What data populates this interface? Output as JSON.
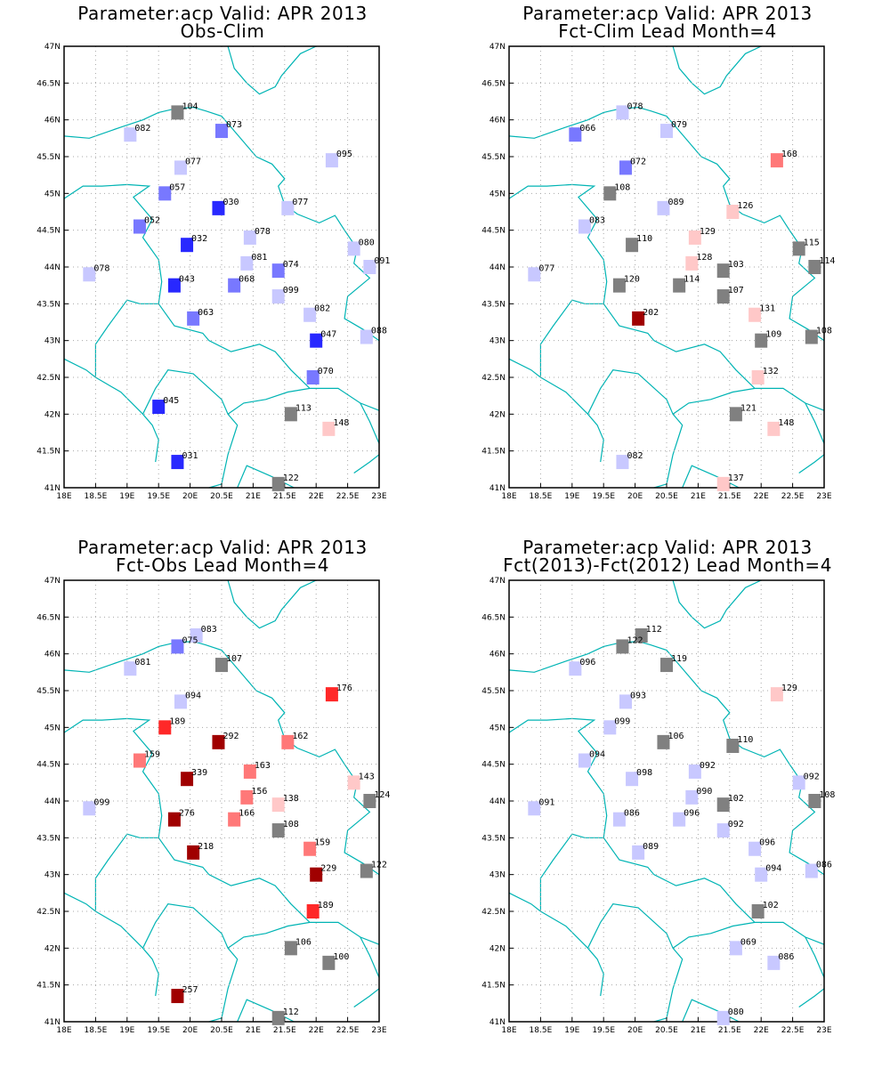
{
  "colors": {
    "grey": "#808080",
    "blue_light": "#c8c8ff",
    "blue_mid": "#7878ff",
    "blue_dark": "#2828ff",
    "red_light": "#ffc8c8",
    "red_mid": "#ff7878",
    "red_strong": "#ff2828",
    "red_dark": "#a00000",
    "border": "#00b4b4"
  },
  "panels": [
    {
      "title1": "Parameter:acp Valid: APR 2013",
      "title2": "Obs-Clim",
      "stations": [
        {
          "lon": 19.8,
          "lat": 46.1,
          "label": "104",
          "color": "grey"
        },
        {
          "lon": 19.05,
          "lat": 45.8,
          "label": "082",
          "color": "blue_light"
        },
        {
          "lon": 20.5,
          "lat": 45.85,
          "label": "073",
          "color": "blue_mid"
        },
        {
          "lon": 19.85,
          "lat": 45.35,
          "label": "077",
          "color": "blue_light"
        },
        {
          "lon": 22.25,
          "lat": 45.45,
          "label": "095",
          "color": "blue_light"
        },
        {
          "lon": 19.6,
          "lat": 45.0,
          "label": "057",
          "color": "blue_mid"
        },
        {
          "lon": 20.45,
          "lat": 44.8,
          "label": "030",
          "color": "blue_dark"
        },
        {
          "lon": 21.55,
          "lat": 44.8,
          "label": "077",
          "color": "blue_light"
        },
        {
          "lon": 19.2,
          "lat": 44.55,
          "label": "052",
          "color": "blue_mid"
        },
        {
          "lon": 19.95,
          "lat": 44.3,
          "label": "032",
          "color": "blue_dark"
        },
        {
          "lon": 20.95,
          "lat": 44.4,
          "label": "078",
          "color": "blue_light"
        },
        {
          "lon": 22.6,
          "lat": 44.25,
          "label": "080",
          "color": "blue_light"
        },
        {
          "lon": 20.9,
          "lat": 44.05,
          "label": "081",
          "color": "blue_light"
        },
        {
          "lon": 21.4,
          "lat": 43.95,
          "label": "074",
          "color": "blue_mid"
        },
        {
          "lon": 22.85,
          "lat": 44.0,
          "label": "091",
          "color": "blue_light"
        },
        {
          "lon": 18.4,
          "lat": 43.9,
          "label": "078",
          "color": "blue_light"
        },
        {
          "lon": 19.75,
          "lat": 43.75,
          "label": "043",
          "color": "blue_dark"
        },
        {
          "lon": 20.7,
          "lat": 43.75,
          "label": "068",
          "color": "blue_mid"
        },
        {
          "lon": 21.4,
          "lat": 43.6,
          "label": "099",
          "color": "blue_light"
        },
        {
          "lon": 21.9,
          "lat": 43.35,
          "label": "082",
          "color": "blue_light"
        },
        {
          "lon": 20.05,
          "lat": 43.3,
          "label": "063",
          "color": "blue_mid"
        },
        {
          "lon": 22.0,
          "lat": 43.0,
          "label": "047",
          "color": "blue_dark"
        },
        {
          "lon": 22.8,
          "lat": 43.05,
          "label": "088",
          "color": "blue_light"
        },
        {
          "lon": 21.95,
          "lat": 42.5,
          "label": "070",
          "color": "blue_mid"
        },
        {
          "lon": 19.5,
          "lat": 42.1,
          "label": "045",
          "color": "blue_dark"
        },
        {
          "lon": 21.6,
          "lat": 42.0,
          "label": "113",
          "color": "grey"
        },
        {
          "lon": 22.2,
          "lat": 41.8,
          "label": "148",
          "color": "red_light"
        },
        {
          "lon": 19.8,
          "lat": 41.35,
          "label": "031",
          "color": "blue_dark"
        },
        {
          "lon": 21.4,
          "lat": 41.05,
          "label": "122",
          "color": "grey"
        }
      ]
    },
    {
      "title1": "Parameter:acp Valid: APR 2013",
      "title2": "Fct-Clim Lead Month=4",
      "stations": [
        {
          "lon": 19.8,
          "lat": 46.1,
          "label": "078",
          "color": "blue_light"
        },
        {
          "lon": 19.05,
          "lat": 45.8,
          "label": "066",
          "color": "blue_mid"
        },
        {
          "lon": 20.5,
          "lat": 45.85,
          "label": "079",
          "color": "blue_light"
        },
        {
          "lon": 19.85,
          "lat": 45.35,
          "label": "072",
          "color": "blue_mid"
        },
        {
          "lon": 22.25,
          "lat": 45.45,
          "label": "168",
          "color": "red_mid"
        },
        {
          "lon": 19.6,
          "lat": 45.0,
          "label": "108",
          "color": "grey"
        },
        {
          "lon": 20.45,
          "lat": 44.8,
          "label": "089",
          "color": "blue_light"
        },
        {
          "lon": 21.55,
          "lat": 44.75,
          "label": "126",
          "color": "red_light"
        },
        {
          "lon": 19.2,
          "lat": 44.55,
          "label": "083",
          "color": "blue_light"
        },
        {
          "lon": 19.95,
          "lat": 44.3,
          "label": "110",
          "color": "grey"
        },
        {
          "lon": 20.95,
          "lat": 44.4,
          "label": "129",
          "color": "red_light"
        },
        {
          "lon": 22.6,
          "lat": 44.25,
          "label": "115",
          "color": "grey"
        },
        {
          "lon": 20.9,
          "lat": 44.05,
          "label": "128",
          "color": "red_light"
        },
        {
          "lon": 21.4,
          "lat": 43.95,
          "label": "103",
          "color": "grey"
        },
        {
          "lon": 22.85,
          "lat": 44.0,
          "label": "114",
          "color": "grey"
        },
        {
          "lon": 18.4,
          "lat": 43.9,
          "label": "077",
          "color": "blue_light"
        },
        {
          "lon": 19.75,
          "lat": 43.75,
          "label": "120",
          "color": "grey"
        },
        {
          "lon": 20.7,
          "lat": 43.75,
          "label": "114",
          "color": "grey"
        },
        {
          "lon": 21.4,
          "lat": 43.6,
          "label": "107",
          "color": "grey"
        },
        {
          "lon": 21.9,
          "lat": 43.35,
          "label": "131",
          "color": "red_light"
        },
        {
          "lon": 20.05,
          "lat": 43.3,
          "label": "202",
          "color": "red_dark"
        },
        {
          "lon": 22.0,
          "lat": 43.0,
          "label": "109",
          "color": "grey"
        },
        {
          "lon": 22.8,
          "lat": 43.05,
          "label": "108",
          "color": "grey"
        },
        {
          "lon": 21.95,
          "lat": 42.5,
          "label": "132",
          "color": "red_light"
        },
        {
          "lon": 21.6,
          "lat": 42.0,
          "label": "121",
          "color": "grey"
        },
        {
          "lon": 22.2,
          "lat": 41.8,
          "label": "148",
          "color": "red_light"
        },
        {
          "lon": 19.8,
          "lat": 41.35,
          "label": "082",
          "color": "blue_light"
        },
        {
          "lon": 21.4,
          "lat": 41.05,
          "label": "137",
          "color": "red_light"
        }
      ]
    },
    {
      "title1": "Parameter:acp Valid: APR 2013",
      "title2": "Fct-Obs Lead Month=4",
      "stations": [
        {
          "lon": 20.1,
          "lat": 46.25,
          "label": "083",
          "color": "blue_light"
        },
        {
          "lon": 19.8,
          "lat": 46.1,
          "label": "075",
          "color": "blue_mid"
        },
        {
          "lon": 19.05,
          "lat": 45.8,
          "label": "081",
          "color": "blue_light"
        },
        {
          "lon": 20.5,
          "lat": 45.85,
          "label": "107",
          "color": "grey"
        },
        {
          "lon": 19.85,
          "lat": 45.35,
          "label": "094",
          "color": "blue_light"
        },
        {
          "lon": 22.25,
          "lat": 45.45,
          "label": "176",
          "color": "red_strong"
        },
        {
          "lon": 19.6,
          "lat": 45.0,
          "label": "189",
          "color": "red_strong"
        },
        {
          "lon": 20.45,
          "lat": 44.8,
          "label": "292",
          "color": "red_dark"
        },
        {
          "lon": 21.55,
          "lat": 44.8,
          "label": "162",
          "color": "red_mid"
        },
        {
          "lon": 19.2,
          "lat": 44.55,
          "label": "159",
          "color": "red_mid"
        },
        {
          "lon": 19.95,
          "lat": 44.3,
          "label": "339",
          "color": "red_dark"
        },
        {
          "lon": 20.95,
          "lat": 44.4,
          "label": "163",
          "color": "red_mid"
        },
        {
          "lon": 22.6,
          "lat": 44.25,
          "label": "143",
          "color": "red_light"
        },
        {
          "lon": 20.9,
          "lat": 44.05,
          "label": "156",
          "color": "red_mid"
        },
        {
          "lon": 21.4,
          "lat": 43.95,
          "label": "138",
          "color": "red_light"
        },
        {
          "lon": 22.85,
          "lat": 44.0,
          "label": "124",
          "color": "grey"
        },
        {
          "lon": 18.4,
          "lat": 43.9,
          "label": "099",
          "color": "blue_light"
        },
        {
          "lon": 19.75,
          "lat": 43.75,
          "label": "276",
          "color": "red_dark"
        },
        {
          "lon": 20.7,
          "lat": 43.75,
          "label": "166",
          "color": "red_mid"
        },
        {
          "lon": 21.4,
          "lat": 43.6,
          "label": "108",
          "color": "grey"
        },
        {
          "lon": 21.9,
          "lat": 43.35,
          "label": "159",
          "color": "red_mid"
        },
        {
          "lon": 20.05,
          "lat": 43.3,
          "label": "218",
          "color": "red_dark"
        },
        {
          "lon": 22.0,
          "lat": 43.0,
          "label": "229",
          "color": "red_dark"
        },
        {
          "lon": 22.8,
          "lat": 43.05,
          "label": "122",
          "color": "grey"
        },
        {
          "lon": 21.95,
          "lat": 42.5,
          "label": "189",
          "color": "red_strong"
        },
        {
          "lon": 21.6,
          "lat": 42.0,
          "label": "106",
          "color": "grey"
        },
        {
          "lon": 22.2,
          "lat": 41.8,
          "label": "100",
          "color": "grey"
        },
        {
          "lon": 19.8,
          "lat": 41.35,
          "label": "257",
          "color": "red_dark"
        },
        {
          "lon": 21.4,
          "lat": 41.05,
          "label": "112",
          "color": "grey"
        }
      ]
    },
    {
      "title1": "Parameter:acp Valid: APR 2013",
      "title2": "Fct(2013)-Fct(2012) Lead Month=4",
      "stations": [
        {
          "lon": 20.1,
          "lat": 46.25,
          "label": "112",
          "color": "grey"
        },
        {
          "lon": 19.8,
          "lat": 46.1,
          "label": "122",
          "color": "grey"
        },
        {
          "lon": 19.05,
          "lat": 45.8,
          "label": "096",
          "color": "blue_light"
        },
        {
          "lon": 20.5,
          "lat": 45.85,
          "label": "119",
          "color": "grey"
        },
        {
          "lon": 19.85,
          "lat": 45.35,
          "label": "093",
          "color": "blue_light"
        },
        {
          "lon": 22.25,
          "lat": 45.45,
          "label": "129",
          "color": "red_light"
        },
        {
          "lon": 19.6,
          "lat": 45.0,
          "label": "099",
          "color": "blue_light"
        },
        {
          "lon": 20.45,
          "lat": 44.8,
          "label": "106",
          "color": "grey"
        },
        {
          "lon": 21.55,
          "lat": 44.75,
          "label": "110",
          "color": "grey"
        },
        {
          "lon": 19.2,
          "lat": 44.55,
          "label": "094",
          "color": "blue_light"
        },
        {
          "lon": 19.95,
          "lat": 44.3,
          "label": "098",
          "color": "blue_light"
        },
        {
          "lon": 20.95,
          "lat": 44.4,
          "label": "092",
          "color": "blue_light"
        },
        {
          "lon": 22.6,
          "lat": 44.25,
          "label": "092",
          "color": "blue_light"
        },
        {
          "lon": 20.9,
          "lat": 44.05,
          "label": "090",
          "color": "blue_light"
        },
        {
          "lon": 21.4,
          "lat": 43.95,
          "label": "102",
          "color": "grey"
        },
        {
          "lon": 22.85,
          "lat": 44.0,
          "label": "108",
          "color": "grey"
        },
        {
          "lon": 18.4,
          "lat": 43.9,
          "label": "091",
          "color": "blue_light"
        },
        {
          "lon": 19.75,
          "lat": 43.75,
          "label": "086",
          "color": "blue_light"
        },
        {
          "lon": 20.7,
          "lat": 43.75,
          "label": "096",
          "color": "blue_light"
        },
        {
          "lon": 21.4,
          "lat": 43.6,
          "label": "092",
          "color": "blue_light"
        },
        {
          "lon": 21.9,
          "lat": 43.35,
          "label": "096",
          "color": "blue_light"
        },
        {
          "lon": 20.05,
          "lat": 43.3,
          "label": "089",
          "color": "blue_light"
        },
        {
          "lon": 22.0,
          "lat": 43.0,
          "label": "094",
          "color": "blue_light"
        },
        {
          "lon": 22.8,
          "lat": 43.05,
          "label": "086",
          "color": "blue_light"
        },
        {
          "lon": 21.95,
          "lat": 42.5,
          "label": "102",
          "color": "grey"
        },
        {
          "lon": 21.6,
          "lat": 42.0,
          "label": "069",
          "color": "blue_light"
        },
        {
          "lon": 22.2,
          "lat": 41.8,
          "label": "086",
          "color": "blue_light"
        },
        {
          "lon": 21.4,
          "lat": 41.05,
          "label": "080",
          "color": "blue_light"
        }
      ]
    }
  ],
  "x_ticks": [
    "18E",
    "18.5E",
    "19E",
    "19.5E",
    "20E",
    "20.5E",
    "21E",
    "21.5E",
    "22E",
    "22.5E",
    "23E"
  ],
  "y_ticks": [
    "41N",
    "41.5N",
    "42N",
    "42.5N",
    "43N",
    "43.5N",
    "44N",
    "44.5N",
    "45N",
    "45.5N",
    "46N",
    "46.5N",
    "47N"
  ],
  "lon_range": [
    18,
    23
  ],
  "lat_range": [
    41,
    47
  ]
}
